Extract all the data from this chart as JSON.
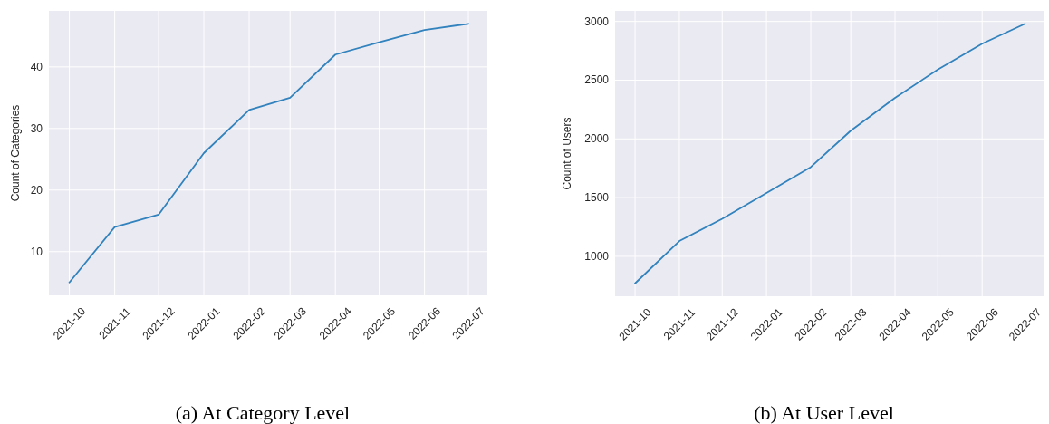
{
  "chart_data": [
    {
      "type": "line",
      "x": [
        "2021-10",
        "2021-11",
        "2021-12",
        "2022-01",
        "2022-02",
        "2022-03",
        "2022-04",
        "2022-05",
        "2022-06",
        "2022-07"
      ],
      "values": [
        5,
        14,
        16,
        26,
        33,
        35,
        42,
        44,
        46,
        47
      ],
      "color": "#3182bd",
      "ylabel": "Count of Categories",
      "xlim": [
        "2021-09-17",
        "2022-07-14"
      ],
      "xticks": [
        "2021-10",
        "2021-11",
        "2021-12",
        "2022-01",
        "2022-02",
        "2022-03",
        "2022-04",
        "2022-05",
        "2022-06",
        "2022-07"
      ],
      "ylim": [
        2.9,
        49.1
      ],
      "yticks": [
        10,
        20,
        30,
        40
      ],
      "grid": true,
      "annotations": [
        "(a) At Category Level"
      ]
    },
    {
      "type": "line",
      "x": [
        "2021-10",
        "2021-11",
        "2021-12",
        "2022-01",
        "2022-02",
        "2022-03",
        "2022-04",
        "2022-05",
        "2022-06",
        "2022-07"
      ],
      "values": [
        770,
        1130,
        1320,
        1540,
        1760,
        2070,
        2350,
        2590,
        2810,
        2980
      ],
      "color": "#3182bd",
      "ylabel": "Count of Users",
      "xlim": [
        "2021-09-17",
        "2022-07-14"
      ],
      "xticks": [
        "2021-10",
        "2021-11",
        "2021-12",
        "2022-01",
        "2022-02",
        "2022-03",
        "2022-04",
        "2022-05",
        "2022-06",
        "2022-07"
      ],
      "ylim": [
        660,
        3090
      ],
      "yticks": [
        1000,
        1500,
        2000,
        2500,
        3000
      ],
      "grid": true,
      "annotations": [
        "(b) At User Level"
      ]
    }
  ]
}
